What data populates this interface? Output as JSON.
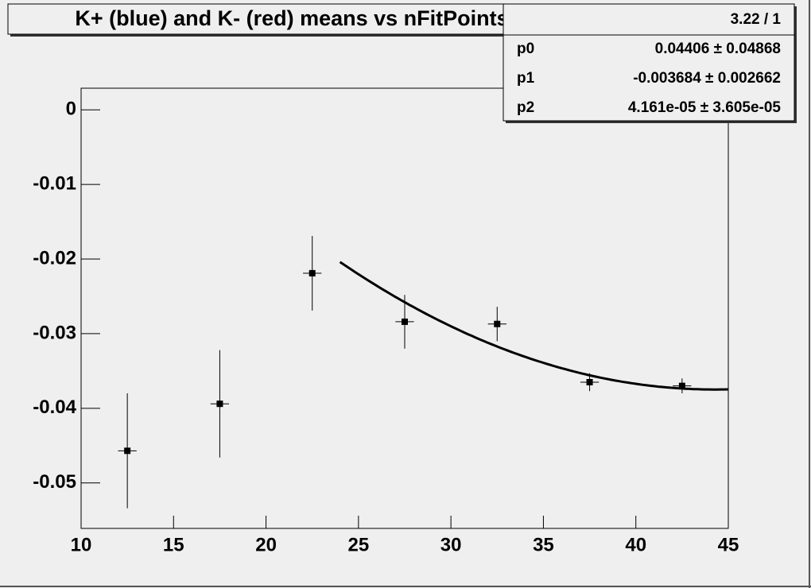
{
  "chart_data": {
    "type": "scatter",
    "title": "K+ (blue) and K- (red) means vs nFitPoints",
    "x": [
      12.5,
      17.5,
      22.5,
      27.5,
      32.5,
      37.5,
      42.5
    ],
    "x_errors": [
      0.5,
      0.5,
      0.5,
      0.5,
      0.5,
      0.5,
      0.5
    ],
    "values": [
      -0.0457,
      -0.0394,
      -0.0219,
      -0.0284,
      -0.0287,
      -0.0365,
      -0.037
    ],
    "errors": [
      0.0077,
      0.0072,
      0.005,
      0.0036,
      0.0023,
      0.0012,
      0.001
    ],
    "color": "#000000",
    "xlim": [
      10,
      45
    ],
    "xticks": [
      10,
      15,
      20,
      25,
      30,
      35,
      40,
      45
    ],
    "ylim": [
      -0.0561,
      0.0029
    ],
    "yticks": [
      0,
      -0.01,
      -0.02,
      -0.03,
      -0.04,
      -0.05
    ],
    "fit": {
      "params": [
        0.04406,
        -0.003684,
        4.161e-05
      ],
      "xrange": [
        24,
        45
      ]
    },
    "stats": {
      "title": "3.22 / 1",
      "rows": [
        {
          "name": "p0",
          "text": "0.04406 ± 0.04868"
        },
        {
          "name": "p1",
          "text": "-0.003684 ± 0.002662"
        },
        {
          "name": "p2",
          "text": "4.161e-05 ± 3.605e-05"
        }
      ]
    }
  }
}
